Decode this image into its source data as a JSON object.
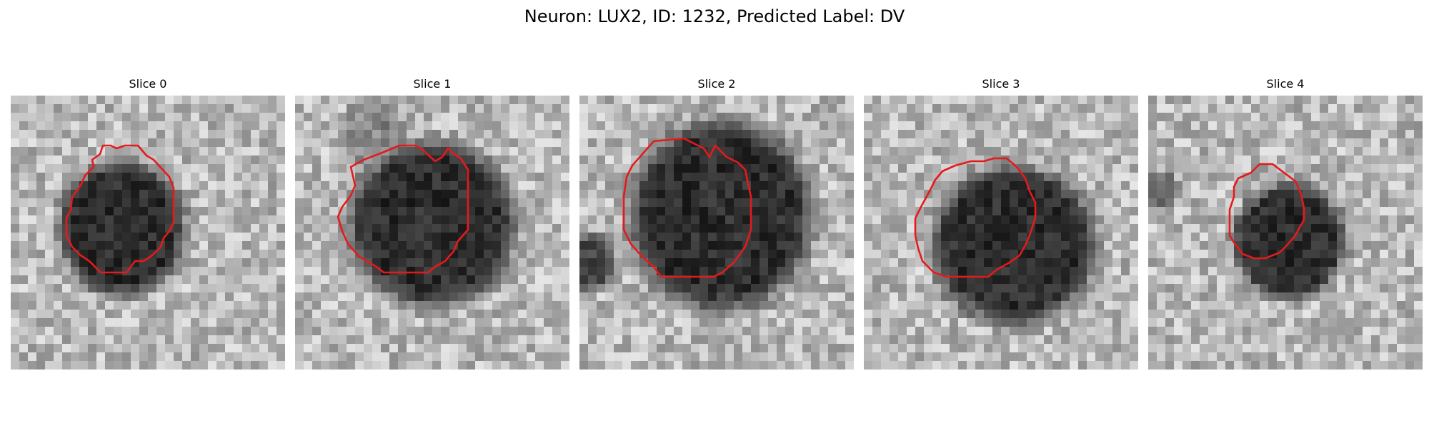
{
  "figure": {
    "title": "Neuron: LUX2, ID: 1232, Predicted Label: DV"
  },
  "panels": [
    {
      "title": "Slice 0"
    },
    {
      "title": "Slice 1"
    },
    {
      "title": "Slice 2"
    },
    {
      "title": "Slice 3"
    },
    {
      "title": "Slice 4"
    }
  ],
  "colors": {
    "contour": "#e41a1c",
    "background": "#ffffff"
  }
}
